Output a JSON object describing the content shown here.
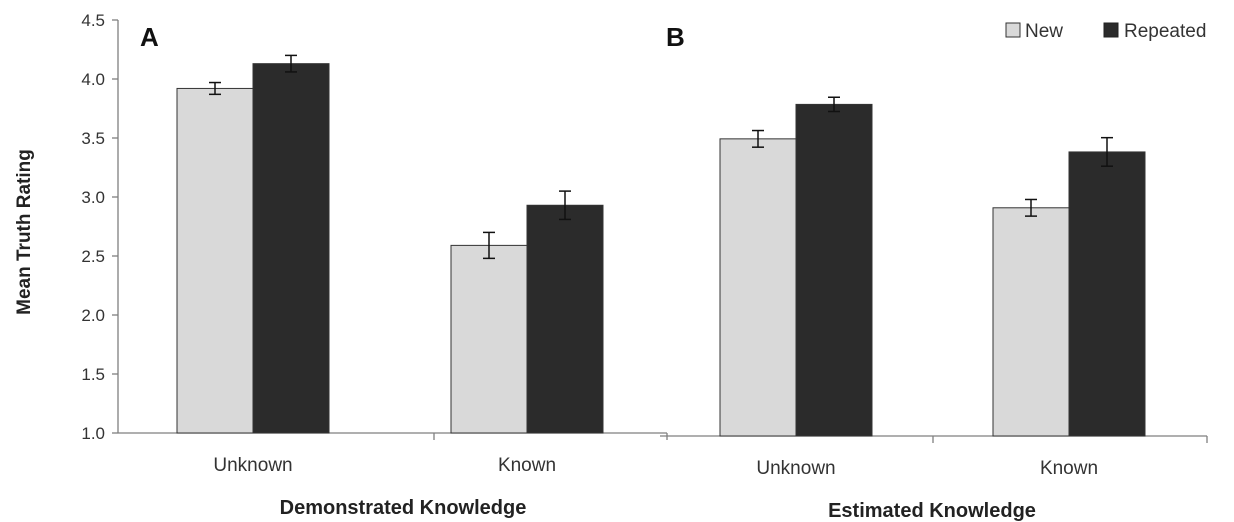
{
  "colors": {
    "new": "#d9d9d9",
    "repeated": "#2b2b2b"
  },
  "legend": [
    {
      "name": "New",
      "color": "#d9d9d9"
    },
    {
      "name": "Repeated",
      "color": "#2b2b2b"
    }
  ],
  "ylabel": "Mean Truth Rating",
  "chart_data": [
    {
      "type": "bar",
      "panel": "A",
      "xlabel": "Demonstrated Knowledge",
      "ylabel": "Mean Truth Rating",
      "ylim": [
        1.0,
        4.5
      ],
      "yticks": [
        "1.0",
        "1.5",
        "2.0",
        "2.5",
        "3.0",
        "3.5",
        "4.0",
        "4.5"
      ],
      "categories": [
        "Unknown",
        "Known"
      ],
      "series": [
        {
          "name": "New",
          "values": [
            3.92,
            2.59
          ],
          "error": [
            0.05,
            0.11
          ]
        },
        {
          "name": "Repeated",
          "values": [
            4.13,
            2.93
          ],
          "error": [
            0.07,
            0.12
          ]
        }
      ]
    },
    {
      "type": "bar",
      "panel": "B",
      "xlabel": "Estimated Knowledge",
      "ylim": [
        1.0,
        4.5
      ],
      "categories": [
        "Unknown",
        "Known"
      ],
      "series": [
        {
          "name": "New",
          "values": [
            3.5,
            2.92
          ],
          "error": [
            0.07,
            0.07
          ]
        },
        {
          "name": "Repeated",
          "values": [
            3.79,
            3.39
          ],
          "error": [
            0.06,
            0.12
          ]
        }
      ]
    }
  ]
}
